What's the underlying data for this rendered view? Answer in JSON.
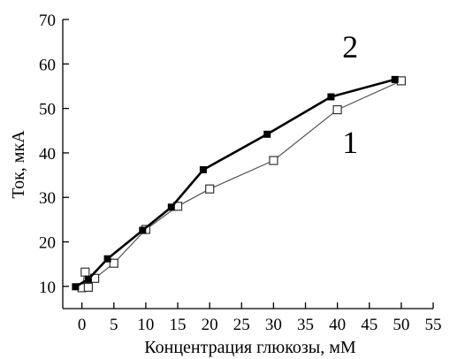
{
  "chart_data": {
    "type": "line",
    "title": "",
    "xlabel": "Концентрация глюкозы, мМ",
    "ylabel": "Ток, мкА",
    "xlim": [
      -3,
      55
    ],
    "ylim": [
      5,
      70
    ],
    "xticks": [
      0,
      5,
      10,
      15,
      20,
      25,
      30,
      35,
      40,
      45,
      50,
      55
    ],
    "yticks": [
      10,
      20,
      30,
      40,
      50,
      60,
      70
    ],
    "grid": false,
    "series": [
      {
        "name": "1",
        "marker": "open-square",
        "color": "#555555",
        "x": [
          0,
          0.5,
          1,
          2,
          5,
          10,
          15,
          20,
          30,
          40,
          50
        ],
        "y": [
          9.7,
          13.2,
          9.8,
          11.8,
          15.2,
          22.8,
          28,
          31.9,
          38.3,
          49.7,
          56.2
        ]
      },
      {
        "name": "2",
        "marker": "filled-square",
        "color": "#000000",
        "x": [
          -1,
          1,
          4,
          9.5,
          14,
          19,
          29,
          39,
          49
        ],
        "y": [
          9.9,
          11.6,
          16.2,
          22.6,
          27.8,
          36.2,
          44.2,
          52.6,
          56.5
        ]
      }
    ],
    "annotations": [
      {
        "text": "2",
        "series": "2",
        "x": 42,
        "y": 61.5
      },
      {
        "text": "1",
        "series": "1",
        "x": 42,
        "y": 40
      }
    ]
  }
}
